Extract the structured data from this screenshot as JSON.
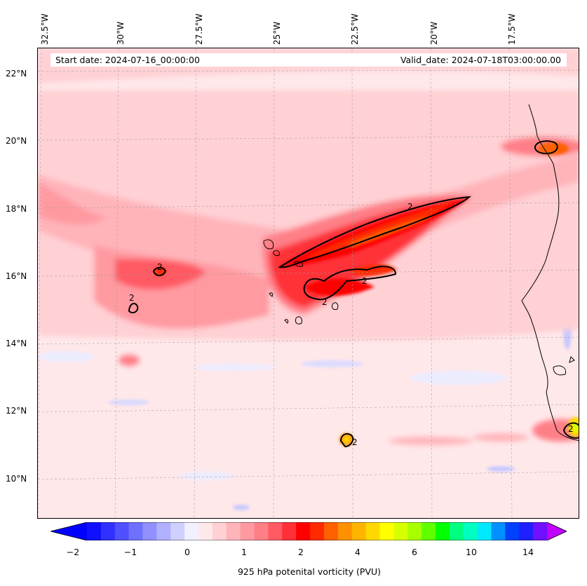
{
  "header": {
    "start_date": "Start date: 2024-07-16_00:00:00",
    "valid_date": "Valid_date: 2024-07-18T03:00:00.00"
  },
  "lon_labels": [
    "32.5°W",
    "30°W",
    "27.5°W",
    "25°W",
    "22.5°W",
    "20°W",
    "17.5°W"
  ],
  "lat_labels": [
    "22°N",
    "20°N",
    "18°N",
    "16°N",
    "14°N",
    "12°N",
    "10°N"
  ],
  "contour_labels": [
    "2",
    "2",
    "2",
    "2",
    "2",
    "2",
    "2"
  ],
  "colorbar": {
    "title": "925 hPa potenital vorticity (PVU)",
    "tick_labels": [
      "−2",
      "−1",
      "0",
      "1",
      "2",
      "4",
      "6",
      "10",
      "14"
    ],
    "colors": [
      "#1010ff",
      "#3030ff",
      "#5050ff",
      "#7070ff",
      "#9090ff",
      "#b0b0ff",
      "#d0d0ff",
      "#f0f0ff",
      "#ffe8ea",
      "#ffd0d4",
      "#ffb4ba",
      "#ff9aa1",
      "#ff7f87",
      "#ff5a63",
      "#ff3038",
      "#ff0000",
      "#ff2a00",
      "#ff6000",
      "#ff9000",
      "#ffb400",
      "#ffd800",
      "#ffff00",
      "#d8ff00",
      "#a8ff00",
      "#60ff00",
      "#00ff00",
      "#00ff80",
      "#00ffc0",
      "#00e8ff",
      "#0090ff",
      "#0040ff",
      "#2020ff",
      "#7010ff"
    ],
    "under_color": "#0000ff",
    "over_color": "#c000ff"
  }
}
